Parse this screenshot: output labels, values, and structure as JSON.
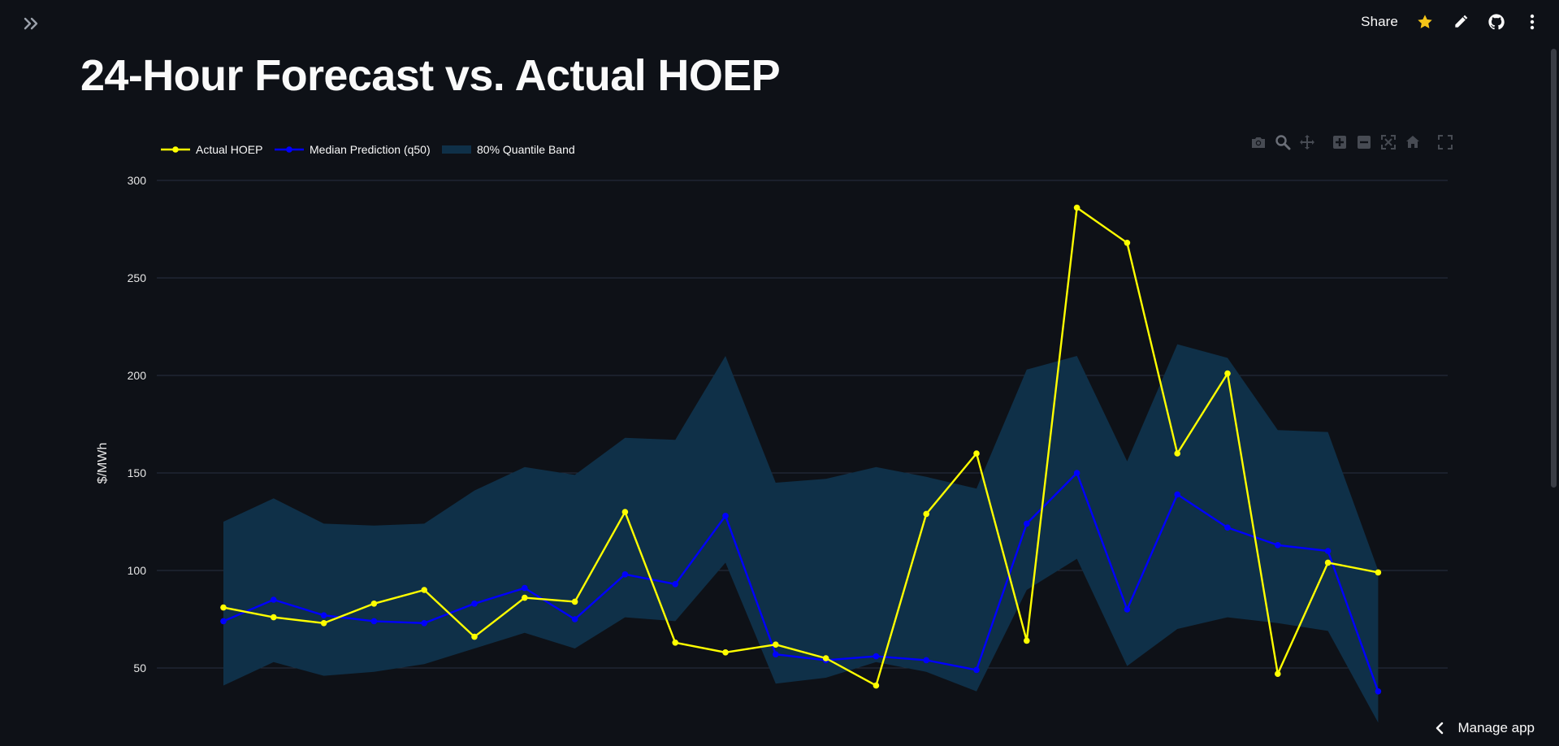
{
  "app": {
    "share_label": "Share",
    "manage_label": "Manage app",
    "icons": {
      "sidebar": "double-chevron-right-icon",
      "star": "star-icon",
      "edit": "pencil-icon",
      "github": "github-icon",
      "menu": "kebab-menu-icon",
      "manage": "chevron-left-icon"
    },
    "star_color": "#f5c518"
  },
  "page": {
    "title": "24-Hour Forecast vs. Actual HOEP"
  },
  "modebar": [
    "camera-icon",
    "zoom-icon",
    "pan-icon",
    "zoom-in-icon",
    "zoom-out-icon",
    "autoscale-icon",
    "reset-axes-icon",
    "fullscreen-icon"
  ],
  "chart_data": {
    "type": "line",
    "title": "",
    "xlabel": "",
    "ylabel": "$/MWh",
    "ylim": [
      30,
      310
    ],
    "yticks": [
      50,
      100,
      150,
      200,
      250,
      300
    ],
    "grid": true,
    "legend_position": "top-left",
    "x": [
      0,
      1,
      2,
      3,
      4,
      5,
      6,
      7,
      8,
      9,
      10,
      11,
      12,
      13,
      14,
      15,
      16,
      17,
      18,
      19,
      20,
      21,
      22,
      23
    ],
    "band": {
      "name": "80% Quantile Band",
      "color": "#0f3048",
      "upper": [
        125,
        137,
        124,
        123,
        124,
        141,
        153,
        149,
        168,
        167,
        210,
        145,
        147,
        153,
        148,
        142,
        203,
        210,
        156,
        216,
        209,
        172,
        171,
        100
      ],
      "lower": [
        41,
        53,
        46,
        48,
        52,
        60,
        68,
        60,
        76,
        74,
        104,
        42,
        45,
        53,
        48,
        38,
        90,
        106,
        51,
        70,
        76,
        73,
        69,
        22
      ]
    },
    "series": [
      {
        "name": "Actual HOEP",
        "color": "#ffff00",
        "values": [
          81,
          76,
          73,
          83,
          90,
          66,
          86,
          84,
          130,
          63,
          58,
          62,
          55,
          41,
          129,
          160,
          64,
          286,
          268,
          160,
          201,
          47,
          104,
          99
        ]
      },
      {
        "name": "Median Prediction (q50)",
        "color": "#0000ff",
        "values": [
          74,
          85,
          77,
          74,
          73,
          83,
          91,
          75,
          98,
          93,
          128,
          57,
          54,
          56,
          54,
          49,
          124,
          150,
          80,
          139,
          122,
          113,
          110,
          38
        ]
      }
    ]
  }
}
